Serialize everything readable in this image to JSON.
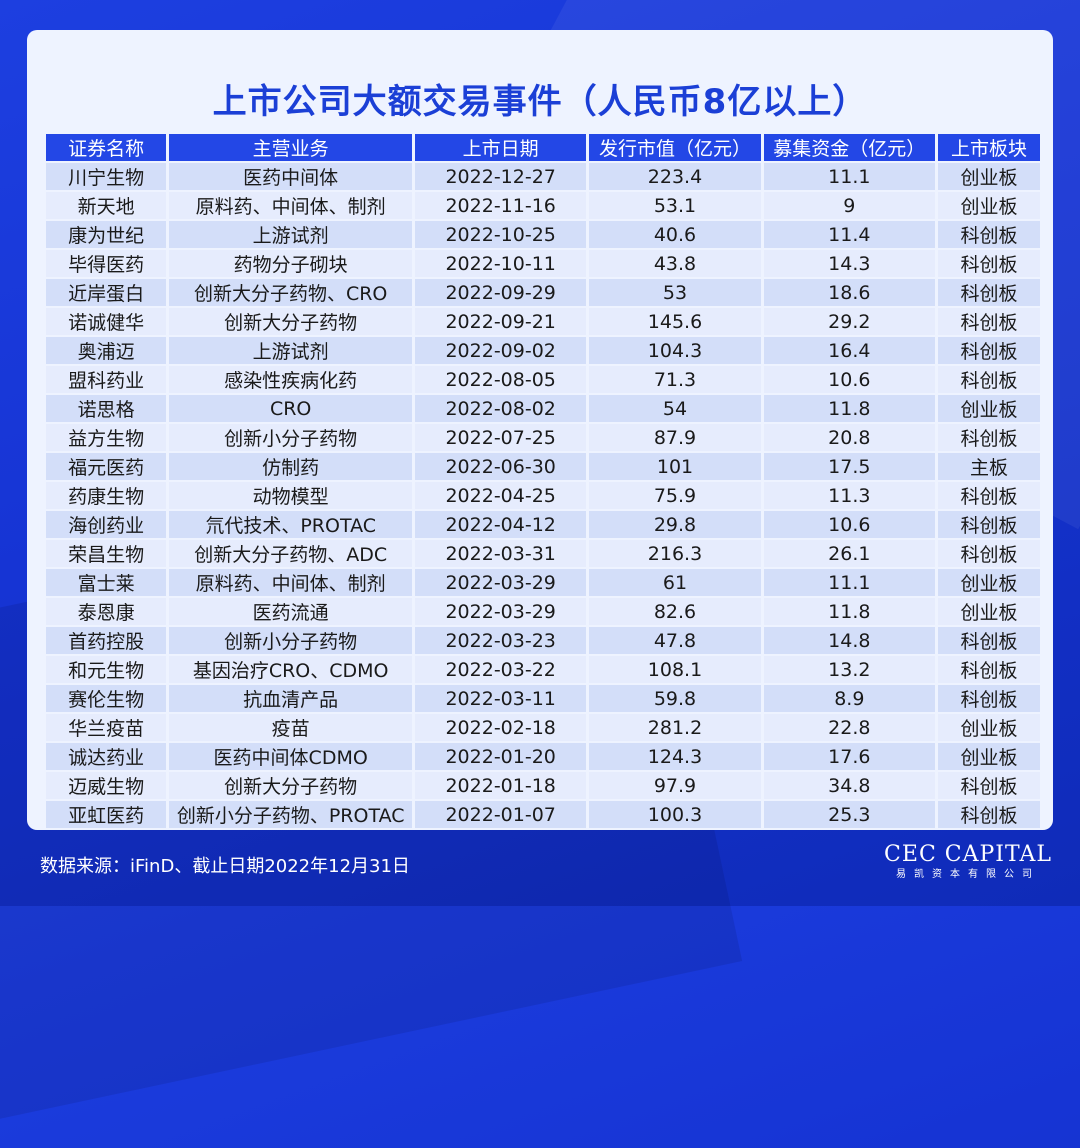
{
  "title": "上市公司大额交易事件（人民币8亿以上）",
  "table": {
    "headers": [
      "证券名称",
      "主营业务",
      "上市日期",
      "发行市值（亿元）",
      "募集资金（亿元）",
      "上市板块"
    ],
    "rows": [
      [
        "川宁生物",
        "医药中间体",
        "2022-12-27",
        "223.4",
        "11.1",
        "创业板"
      ],
      [
        "新天地",
        "原料药、中间体、制剂",
        "2022-11-16",
        "53.1",
        "9",
        "创业板"
      ],
      [
        "康为世纪",
        "上游试剂",
        "2022-10-25",
        "40.6",
        "11.4",
        "科创板"
      ],
      [
        "毕得医药",
        "药物分子砌块",
        "2022-10-11",
        "43.8",
        "14.3",
        "科创板"
      ],
      [
        "近岸蛋白",
        "创新大分子药物、CRO",
        "2022-09-29",
        "53",
        "18.6",
        "科创板"
      ],
      [
        "诺诚健华",
        "创新大分子药物",
        "2022-09-21",
        "145.6",
        "29.2",
        "科创板"
      ],
      [
        "奥浦迈",
        "上游试剂",
        "2022-09-02",
        "104.3",
        "16.4",
        "科创板"
      ],
      [
        "盟科药业",
        "感染性疾病化药",
        "2022-08-05",
        "71.3",
        "10.6",
        "科创板"
      ],
      [
        "诺思格",
        "CRO",
        "2022-08-02",
        "54",
        "11.8",
        "创业板"
      ],
      [
        "益方生物",
        "创新小分子药物",
        "2022-07-25",
        "87.9",
        "20.8",
        "科创板"
      ],
      [
        "福元医药",
        "仿制药",
        "2022-06-30",
        "101",
        "17.5",
        "主板"
      ],
      [
        "药康生物",
        "动物模型",
        "2022-04-25",
        "75.9",
        "11.3",
        "科创板"
      ],
      [
        "海创药业",
        "氘代技术、PROTAC",
        "2022-04-12",
        "29.8",
        "10.6",
        "科创板"
      ],
      [
        "荣昌生物",
        "创新大分子药物、ADC",
        "2022-03-31",
        "216.3",
        "26.1",
        "科创板"
      ],
      [
        "富士莱",
        "原料药、中间体、制剂",
        "2022-03-29",
        "61",
        "11.1",
        "创业板"
      ],
      [
        "泰恩康",
        "医药流通",
        "2022-03-29",
        "82.6",
        "11.8",
        "创业板"
      ],
      [
        "首药控股",
        "创新小分子药物",
        "2022-03-23",
        "47.8",
        "14.8",
        "科创板"
      ],
      [
        "和元生物",
        "基因治疗CRO、CDMO",
        "2022-03-22",
        "108.1",
        "13.2",
        "科创板"
      ],
      [
        "赛伦生物",
        "抗血清产品",
        "2022-03-11",
        "59.8",
        "8.9",
        "科创板"
      ],
      [
        "华兰疫苗",
        "疫苗",
        "2022-02-18",
        "281.2",
        "22.8",
        "创业板"
      ],
      [
        "诚达药业",
        "医药中间体CDMO",
        "2022-01-20",
        "124.3",
        "17.6",
        "创业板"
      ],
      [
        "迈威生物",
        "创新大分子药物",
        "2022-01-18",
        "97.9",
        "34.8",
        "科创板"
      ],
      [
        "亚虹医药",
        "创新小分子药物、PROTAC",
        "2022-01-07",
        "100.3",
        "25.3",
        "科创板"
      ]
    ]
  },
  "footer": {
    "source": "数据来源：iFinD、截止日期2022年12月31日"
  },
  "logo": {
    "main": "CEC CAPITAL",
    "sub": "易凯资本有限公司"
  },
  "colors": {
    "background": "#1634d4",
    "header_fill": "#2347e6",
    "title": "#1b3fd6",
    "row_fill_a": "#d3def9",
    "row_fill_b": "#e6ecfd"
  }
}
